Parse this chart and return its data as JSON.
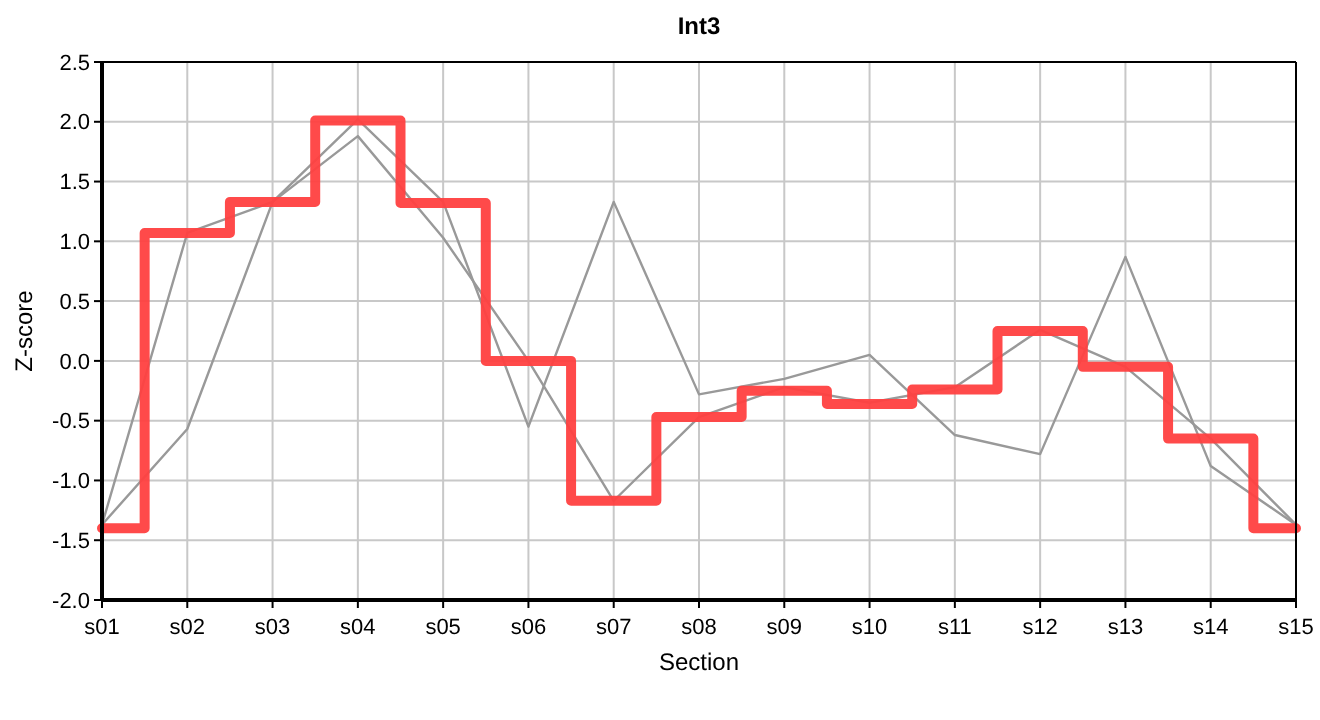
{
  "chart_data": {
    "type": "line",
    "title": "Int3",
    "xlabel": "Section",
    "ylabel": "Z-score",
    "categories": [
      "s01",
      "s02",
      "s03",
      "s04",
      "s05",
      "s06",
      "s07",
      "s08",
      "s09",
      "s10",
      "s11",
      "s12",
      "s13",
      "s14",
      "s15"
    ],
    "series": [
      {
        "color": "#999999",
        "values": [
          -1.37,
          1.07,
          1.33,
          2.02,
          1.33,
          -0.55,
          1.33,
          -0.28,
          -0.15,
          0.05,
          -0.62,
          -0.78,
          0.87,
          -0.88,
          -1.37
        ]
      },
      {
        "color": "#999999",
        "values": [
          -1.37,
          -0.57,
          1.33,
          1.88,
          1.03,
          0.0,
          -1.17,
          -0.47,
          -0.22,
          -0.35,
          -0.22,
          0.26,
          -0.05,
          -0.65,
          -1.37
        ]
      },
      {
        "type": "step",
        "color": "#ff4040",
        "values": [
          -1.4,
          1.07,
          1.33,
          2.01,
          1.32,
          0.0,
          -1.17,
          -0.47,
          -0.25,
          -0.36,
          -0.24,
          0.25,
          -0.05,
          -0.65,
          -1.4
        ]
      }
    ],
    "ylim": [
      -2.0,
      2.5
    ],
    "yticks": [
      {
        "value": -2,
        "label": "-2.0"
      },
      {
        "value": -1.5,
        "label": "-1.5"
      },
      {
        "value": -1,
        "label": "-1.0"
      },
      {
        "value": -0.5,
        "label": "-0.5"
      },
      {
        "value": 0,
        "label": "0.0"
      },
      {
        "value": 0.5,
        "label": "0.5"
      },
      {
        "value": 1,
        "label": "1.0"
      },
      {
        "value": 1.5,
        "label": "1.5"
      },
      {
        "value": 2,
        "label": "2.0"
      },
      {
        "value": 2.5,
        "label": "2.5"
      }
    ],
    "grid": true,
    "marker": "none",
    "line_style": "solid"
  }
}
